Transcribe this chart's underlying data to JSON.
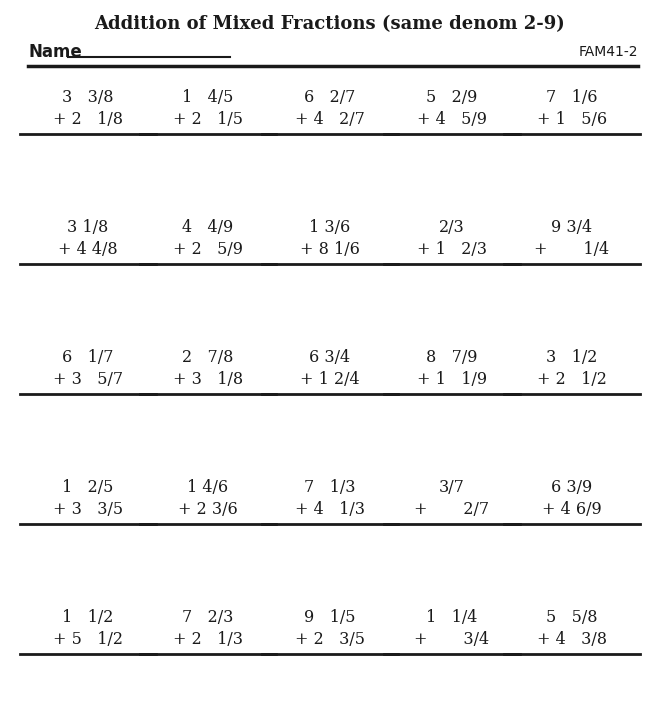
{
  "title": "Addition of Mixed Fractions (same denom 2-9)",
  "name_label": "Name",
  "code": "FAM41-2",
  "problems": [
    [
      {
        "top": "3   3/8",
        "bot": "+ 2   1/8"
      },
      {
        "top": "1   4/5",
        "bot": "+ 2   1/5"
      },
      {
        "top": "6   2/7",
        "bot": "+ 4   2/7"
      },
      {
        "top": "5   2/9",
        "bot": "+ 4   5/9"
      },
      {
        "top": "7   1/6",
        "bot": "+ 1   5/6"
      }
    ],
    [
      {
        "top": "3 1/8",
        "bot": "+ 4 4/8"
      },
      {
        "top": "4   4/9",
        "bot": "+ 2   5/9"
      },
      {
        "top": "1 3/6",
        "bot": "+ 8 1/6"
      },
      {
        "top": "2/3",
        "bot": "+ 1   2/3"
      },
      {
        "top": "9 3/4",
        "bot": "+       1/4"
      }
    ],
    [
      {
        "top": "6   1/7",
        "bot": "+ 3   5/7"
      },
      {
        "top": "2   7/8",
        "bot": "+ 3   1/8"
      },
      {
        "top": "6 3/4",
        "bot": "+ 1 2/4"
      },
      {
        "top": "8   7/9",
        "bot": "+ 1   1/9"
      },
      {
        "top": "3   1/2",
        "bot": "+ 2   1/2"
      }
    ],
    [
      {
        "top": "1   2/5",
        "bot": "+ 3   3/5"
      },
      {
        "top": "1 4/6",
        "bot": "+ 2 3/6"
      },
      {
        "top": "7   1/3",
        "bot": "+ 4   1/3"
      },
      {
        "top": "3/7",
        "bot": "+       2/7"
      },
      {
        "top": "6 3/9",
        "bot": "+ 4 6/9"
      }
    ],
    [
      {
        "top": "1   1/2",
        "bot": "+ 5   1/2"
      },
      {
        "top": "7   2/3",
        "bot": "+ 2   1/3"
      },
      {
        "top": "9   1/5",
        "bot": "+ 2   3/5"
      },
      {
        "top": "1   1/4",
        "bot": "+       3/4"
      },
      {
        "top": "5   5/8",
        "bot": "+ 4   3/8"
      }
    ]
  ],
  "bg_color": "#ffffff",
  "text_color": "#1a1a1a",
  "font_size": 11.5,
  "title_font_size": 13
}
